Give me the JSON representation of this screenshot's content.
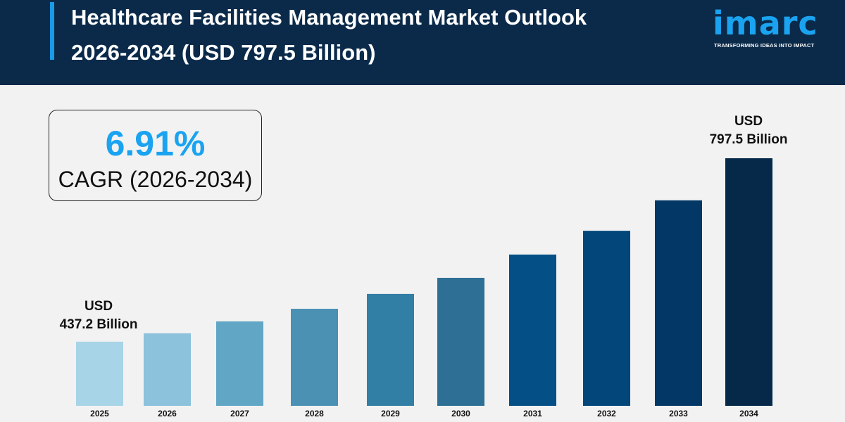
{
  "header": {
    "title_line1": "Healthcare Facilities Management Market Outlook",
    "title_line2": "2026-2034 (USD 797.5 Billion)",
    "logo_text": "imarc",
    "logo_tagline": "TRANSFORMING IDEAS INTO IMPACT"
  },
  "cagr": {
    "value": "6.91%",
    "label": "CAGR (2026-2034)"
  },
  "colors": {
    "header_bg": "#0b2a4a",
    "accent": "#1aa3f0",
    "background": "#f2f2f2"
  },
  "chart_data": {
    "type": "bar",
    "title": "",
    "xlabel": "",
    "ylabel": "",
    "grid": false,
    "categories": [
      "2025",
      "2026",
      "2027",
      "2028",
      "2029",
      "2030",
      "2031",
      "2032",
      "2033",
      "2034"
    ],
    "values": [
      437.2,
      null,
      null,
      null,
      null,
      null,
      null,
      null,
      null,
      797.5
    ],
    "relative_levels": [
      0.259,
      0.293,
      0.341,
      0.392,
      0.452,
      0.517,
      0.611,
      0.707,
      0.83,
      1.0
    ],
    "bar_colors": [
      "#a8d4e7",
      "#8cc2db",
      "#62a6c6",
      "#4a91b4",
      "#327fa5",
      "#2d6f95",
      "#044f86",
      "#03467a",
      "#033866",
      "#06294a"
    ],
    "annotations": [
      {
        "category": "2025",
        "line1": "USD",
        "line2": "437.2 Billion"
      },
      {
        "category": "2034",
        "line1": "USD",
        "line2": "797.5 Billion"
      }
    ]
  }
}
